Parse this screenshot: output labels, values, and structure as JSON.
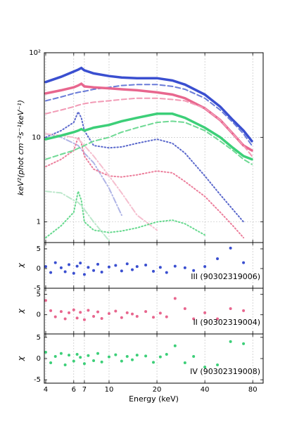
{
  "chart_data": [
    {
      "type": "line",
      "ylabel": "keV²(phot cm⁻²s⁻¹keV⁻¹)",
      "log_x": true,
      "log_y": true,
      "grid": true,
      "xlim": [
        3.92,
        93
      ],
      "ylim": [
        0.57,
        100
      ],
      "yticks": [
        {
          "value": 100,
          "label": "10²"
        },
        10,
        1
      ],
      "x": [
        4,
        5,
        6,
        6.4,
        6.7,
        7,
        8,
        10,
        12,
        15,
        20,
        25,
        30,
        40,
        50,
        60,
        70,
        79
      ],
      "series": [
        {
          "style": "data",
          "color": "#3a4fd0",
          "values": [
            45,
            52,
            60,
            63,
            66,
            62,
            57,
            53,
            51,
            50,
            50,
            47,
            42,
            32,
            23,
            16,
            12,
            9
          ]
        },
        {
          "style": "dashed",
          "color": "#6a7cd8",
          "values": [
            27,
            30,
            33,
            34,
            34.5,
            35,
            37,
            39,
            41,
            42,
            42,
            40,
            37,
            29,
            21,
            15,
            11,
            8
          ]
        },
        {
          "style": "dotted",
          "color": "#5a68cc",
          "values": [
            10,
            12,
            15,
            20,
            17,
            12,
            8,
            7.5,
            7.7,
            8.5,
            9.5,
            8.5,
            6.5,
            3.5,
            2.1,
            1.4,
            1.0,
            null
          ]
        },
        {
          "style": "dashdot",
          "color": "#b0b5e6",
          "values": [
            11,
            10,
            8.5,
            8,
            7.2,
            6.5,
            5,
            2.5,
            1.2,
            null,
            null,
            null,
            null,
            null,
            null,
            null,
            null,
            null
          ]
        },
        {
          "style": "data",
          "color": "#e8668e",
          "values": [
            33,
            36,
            39,
            41,
            43,
            40,
            39,
            38,
            37,
            36,
            34,
            32,
            29,
            22,
            16,
            11,
            8,
            7
          ]
        },
        {
          "style": "dashed",
          "color": "#f29ab5",
          "values": [
            19,
            21,
            23,
            24,
            24.5,
            25,
            26,
            27,
            28,
            29,
            29,
            28,
            27,
            22,
            16,
            11,
            8,
            6
          ]
        },
        {
          "style": "dotted",
          "color": "#ec7f9c",
          "values": [
            4.5,
            5.5,
            7,
            10,
            8.5,
            6,
            4.2,
            3.5,
            3.4,
            3.6,
            4,
            3.8,
            3,
            2,
            1.3,
            0.9,
            0.65,
            null
          ]
        },
        {
          "style": "dashdot",
          "color": "#f5bfcf",
          "values": [
            11,
            10.5,
            10,
            9.5,
            8.8,
            8,
            6,
            3.5,
            2.2,
            1.2,
            0.8,
            null,
            null,
            null,
            null,
            null,
            null,
            null
          ]
        },
        {
          "style": "data",
          "color": "#3ccf78",
          "values": [
            9.5,
            10.5,
            11.5,
            12,
            12.5,
            12,
            13,
            14,
            15.5,
            17,
            19,
            19,
            17,
            13,
            10,
            7.5,
            6,
            5.5
          ]
        },
        {
          "style": "dashed",
          "color": "#6fd994",
          "values": [
            5.5,
            6.3,
            7,
            7.4,
            7.7,
            8,
            9,
            10,
            11.5,
            13,
            15,
            15.5,
            15,
            12,
            9,
            7,
            5.5,
            4.8
          ]
        },
        {
          "style": "dotted",
          "color": "#66d98e",
          "values": [
            0.65,
            0.9,
            1.3,
            2.3,
            1.8,
            1.0,
            0.8,
            0.75,
            0.78,
            0.85,
            1.0,
            1.05,
            0.95,
            0.7,
            null,
            null,
            null,
            null
          ]
        },
        {
          "style": "dashdot",
          "color": "#bde8cc",
          "values": [
            2.3,
            2.2,
            1.8,
            1.7,
            1.55,
            1.4,
            1.0,
            0.6,
            null,
            null,
            null,
            null,
            null,
            null,
            null,
            null,
            null,
            null
          ]
        }
      ]
    },
    {
      "type": "scatter",
      "ylabel": "χ",
      "log_x": true,
      "xlim": [
        3.92,
        93
      ],
      "ylim": [
        -5,
        6.6
      ],
      "yticks": [
        -5,
        0,
        5
      ],
      "x": [
        4,
        4.3,
        4.6,
        5,
        5.3,
        5.6,
        6,
        6.3,
        6.6,
        7,
        7.4,
        8,
        8.5,
        9,
        10,
        11,
        12,
        13,
        14,
        15,
        17,
        19,
        21,
        23,
        26,
        30,
        34,
        40,
        48,
        58,
        70
      ],
      "series": [
        {
          "name": "III (90302319006)",
          "color": "#3a4fd0",
          "values": [
            0.5,
            -1,
            1.5,
            0.2,
            -0.8,
            1,
            -1.2,
            0.6,
            1.4,
            -1.5,
            0.3,
            -0.5,
            1.1,
            -0.9,
            0.4,
            0.8,
            -0.6,
            1.2,
            -0.3,
            0.5,
            0.9,
            -0.7,
            0.3,
            -1,
            0.6,
            0.2,
            -0.5,
            0.5,
            2.5,
            5.2,
            1.5
          ]
        }
      ]
    },
    {
      "type": "scatter",
      "ylabel": "χ",
      "log_x": true,
      "xlim": [
        3.92,
        93
      ],
      "ylim": [
        -4.7,
        6.5
      ],
      "yticks": [
        -5,
        0,
        5
      ],
      "x": [
        4,
        4.3,
        4.6,
        5,
        5.3,
        5.6,
        6,
        6.3,
        6.6,
        7,
        7.4,
        8,
        8.5,
        9,
        10,
        11,
        12,
        13,
        14,
        15,
        17,
        19,
        21,
        23,
        26,
        30,
        34,
        40,
        48,
        58,
        70
      ],
      "series": [
        {
          "name": "II (90302319004)",
          "color": "#e8668e",
          "values": [
            3.5,
            1,
            -0.5,
            0.8,
            -1,
            0.5,
            1.2,
            -0.8,
            0.6,
            -1.2,
            1.1,
            -0.4,
            0.7,
            -0.9,
            0.3,
            0.9,
            -0.7,
            0.5,
            0.2,
            -0.4,
            0.8,
            -0.6,
            0.4,
            -0.5,
            4,
            1.5,
            -1,
            0.5,
            -1,
            1.5,
            1
          ]
        }
      ]
    },
    {
      "type": "scatter",
      "ylabel": "χ",
      "log_x": true,
      "xlim": [
        3.92,
        93
      ],
      "ylim": [
        -5.8,
        5.8
      ],
      "yticks": [
        -5,
        0,
        5
      ],
      "xlabel": "Energy (keV)",
      "xticks": [
        4,
        6,
        7,
        10,
        20,
        40,
        80
      ],
      "x": [
        4,
        4.3,
        4.6,
        5,
        5.3,
        5.6,
        6,
        6.3,
        6.6,
        7,
        7.4,
        8,
        8.5,
        9,
        10,
        11,
        12,
        13,
        14,
        15,
        17,
        19,
        21,
        23,
        26,
        30,
        34,
        40,
        48,
        58,
        70
      ],
      "series": [
        {
          "name": "IV (90302319008)",
          "color": "#3ccf78",
          "values": [
            1.5,
            -1,
            0.5,
            1.2,
            -1.5,
            0.8,
            -0.6,
            1,
            0.3,
            -1.2,
            0.7,
            -0.5,
            1.2,
            -0.8,
            0.4,
            0.9,
            -0.6,
            0.5,
            -0.3,
            0.8,
            0.6,
            -0.9,
            0.4,
            1,
            3,
            -1,
            0.5,
            -2,
            -1.5,
            4,
            3.5
          ]
        }
      ]
    }
  ]
}
